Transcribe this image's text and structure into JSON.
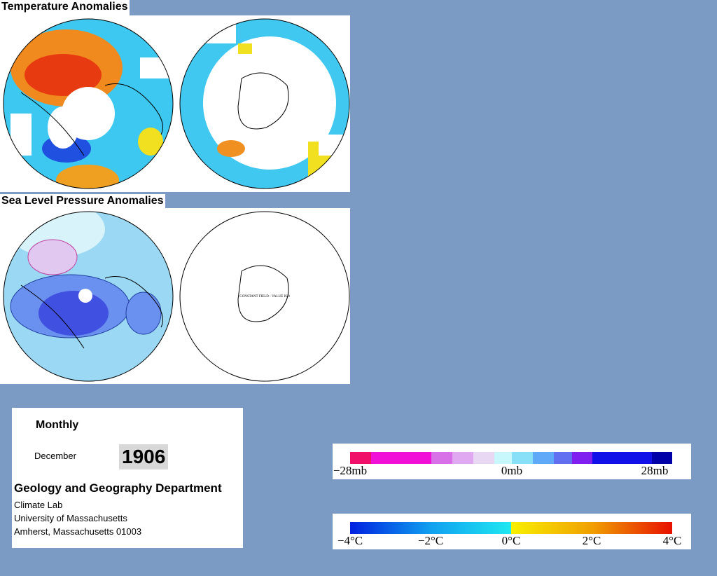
{
  "sections": [
    {
      "title": "Temperature Anomalies"
    },
    {
      "title": "Sea Level Pressure Anomalies",
      "map_note": "CONSTANT FIELD - VALUE IS 0"
    }
  ],
  "info": {
    "period": "Monthly",
    "month": "December",
    "year": "1906",
    "department": "Geology and Geography Department",
    "lines": [
      "Climate Lab",
      "University of Massachusetts",
      "Amherst, Massachusetts 01003"
    ]
  },
  "legends": [
    {
      "labels": [
        "−28mb",
        "0mb",
        "28mb"
      ]
    },
    {
      "labels": [
        "−4°C",
        "−2°C",
        "0°C",
        "2°C",
        "4°C"
      ]
    }
  ]
}
